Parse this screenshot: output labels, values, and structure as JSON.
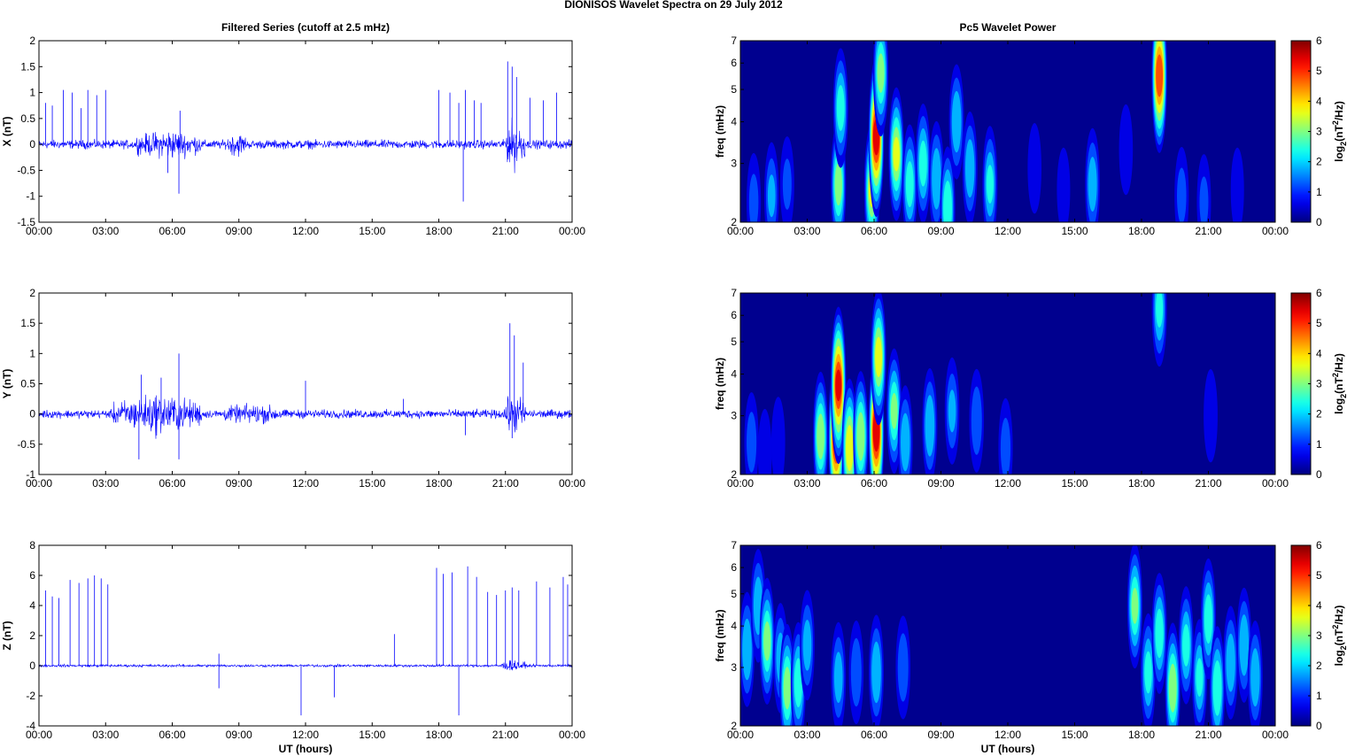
{
  "figure": {
    "title": "DIONISOS Wavelet Spectra on 29 July      2012",
    "left_column_title": "Filtered Series (cutoff at 2.5 mHz)",
    "right_column_title": "Pc5 Wavelet Power",
    "xlabel": "UT (hours)"
  },
  "colors": {
    "trace": "#0000ff",
    "axes": "#000000",
    "spectrum_background": "#00008f",
    "colormap": "jet"
  },
  "chart_data": [
    {
      "type": "line",
      "panel": "filtered-x",
      "ylabel": "X (nT)",
      "ylim": [
        -1.5,
        2
      ],
      "yticks": [
        "-1.5",
        "-1",
        "-0.5",
        "0",
        "0.5",
        "1",
        "1.5",
        "2"
      ],
      "xlim": [
        0,
        24
      ],
      "xticks": [
        "00:00",
        "03:00",
        "06:00",
        "09:00",
        "12:00",
        "15:00",
        "18:00",
        "21:00",
        "00:00"
      ],
      "baseline_noise_amplitude": 0.12,
      "bursts": [
        {
          "t_start": 4.4,
          "t_end": 7.3,
          "amplitude": 0.3
        },
        {
          "t_start": 8.5,
          "t_end": 9.3,
          "amplitude": 0.25
        },
        {
          "t_start": 20.9,
          "t_end": 21.9,
          "amplitude": 0.6
        }
      ],
      "spikes": [
        {
          "t": 0.3,
          "v": 0.8
        },
        {
          "t": 0.6,
          "v": 0.75
        },
        {
          "t": 1.1,
          "v": 1.05
        },
        {
          "t": 1.5,
          "v": 1.0
        },
        {
          "t": 1.9,
          "v": 0.7
        },
        {
          "t": 2.2,
          "v": 1.05
        },
        {
          "t": 2.6,
          "v": 0.95
        },
        {
          "t": 3.0,
          "v": 1.05
        },
        {
          "t": 6.3,
          "v": -0.95
        },
        {
          "t": 6.35,
          "v": 0.65
        },
        {
          "t": 5.8,
          "v": -0.55
        },
        {
          "t": 18.0,
          "v": 1.05
        },
        {
          "t": 18.5,
          "v": 1.0
        },
        {
          "t": 18.9,
          "v": 0.8
        },
        {
          "t": 19.2,
          "v": 1.05
        },
        {
          "t": 19.6,
          "v": 0.85
        },
        {
          "t": 19.9,
          "v": 0.8
        },
        {
          "t": 19.1,
          "v": -1.1
        },
        {
          "t": 21.1,
          "v": 1.6
        },
        {
          "t": 21.3,
          "v": 1.5
        },
        {
          "t": 21.5,
          "v": 1.3
        },
        {
          "t": 22.7,
          "v": 0.85
        },
        {
          "t": 23.3,
          "v": 1.0
        },
        {
          "t": 22.1,
          "v": 0.9
        }
      ]
    },
    {
      "type": "heatmap",
      "panel": "wavelet-x",
      "ylabel": "freq (mHz)",
      "ylim": [
        2,
        7
      ],
      "yscale": "log",
      "yticks": [
        "2",
        "3",
        "4",
        "5",
        "6",
        "7"
      ],
      "xlim": [
        0,
        24
      ],
      "xticks": [
        "00:00",
        "03:00",
        "06:00",
        "09:00",
        "12:00",
        "15:00",
        "18:00",
        "21:00",
        "00:00"
      ],
      "colorbar": {
        "label": "log2(nT2/Hz)",
        "range": [
          0,
          6
        ],
        "ticks": [
          "0",
          "1",
          "2",
          "3",
          "4",
          "5",
          "6"
        ]
      },
      "blobs": [
        {
          "t": 0.6,
          "f": 2.3,
          "p": 1.3
        },
        {
          "t": 1.4,
          "f": 2.4,
          "p": 1.8
        },
        {
          "t": 2.1,
          "f": 2.6,
          "p": 1.2
        },
        {
          "t": 4.4,
          "f": 2.6,
          "p": 3.2
        },
        {
          "t": 4.5,
          "f": 4.4,
          "p": 2.6
        },
        {
          "t": 5.9,
          "f": 2.5,
          "p": 3.6
        },
        {
          "t": 6.1,
          "f": 3.6,
          "p": 5.6
        },
        {
          "t": 6.3,
          "f": 5.6,
          "p": 3.1
        },
        {
          "t": 7.0,
          "f": 3.2,
          "p": 3.6
        },
        {
          "t": 7.6,
          "f": 2.6,
          "p": 2.6
        },
        {
          "t": 8.2,
          "f": 3.0,
          "p": 2.6
        },
        {
          "t": 8.8,
          "f": 2.7,
          "p": 2.3
        },
        {
          "t": 9.3,
          "f": 2.2,
          "p": 2.9
        },
        {
          "t": 9.7,
          "f": 4.0,
          "p": 2.3
        },
        {
          "t": 10.3,
          "f": 2.9,
          "p": 2.2
        },
        {
          "t": 11.2,
          "f": 2.6,
          "p": 2.4
        },
        {
          "t": 13.2,
          "f": 2.9,
          "p": 1.0
        },
        {
          "t": 14.5,
          "f": 2.5,
          "p": 0.8
        },
        {
          "t": 15.8,
          "f": 2.6,
          "p": 2.1
        },
        {
          "t": 17.3,
          "f": 3.3,
          "p": 1.0
        },
        {
          "t": 18.8,
          "f": 5.5,
          "p": 5.2
        },
        {
          "t": 19.8,
          "f": 2.4,
          "p": 1.3
        },
        {
          "t": 20.8,
          "f": 2.3,
          "p": 1.2
        },
        {
          "t": 22.3,
          "f": 2.5,
          "p": 0.8
        }
      ]
    },
    {
      "type": "line",
      "panel": "filtered-y",
      "ylabel": "Y (nT)",
      "ylim": [
        -1,
        2
      ],
      "yticks": [
        "-1",
        "-0.5",
        "0",
        "0.5",
        "1",
        "1.5",
        "2"
      ],
      "xlim": [
        0,
        24
      ],
      "xticks": [
        "00:00",
        "03:00",
        "06:00",
        "09:00",
        "12:00",
        "15:00",
        "18:00",
        "21:00",
        "00:00"
      ],
      "baseline_noise_amplitude": 0.1,
      "bursts": [
        {
          "t_start": 3.3,
          "t_end": 7.4,
          "amplitude": 0.4
        },
        {
          "t_start": 8.3,
          "t_end": 11.0,
          "amplitude": 0.15
        },
        {
          "t_start": 20.9,
          "t_end": 21.9,
          "amplitude": 0.4
        }
      ],
      "spikes": [
        {
          "t": 4.5,
          "v": -0.75
        },
        {
          "t": 4.6,
          "v": 0.65
        },
        {
          "t": 6.3,
          "v": 1.0
        },
        {
          "t": 6.3,
          "v": -0.75
        },
        {
          "t": 5.5,
          "v": 0.6
        },
        {
          "t": 12.0,
          "v": 0.55
        },
        {
          "t": 16.4,
          "v": 0.25
        },
        {
          "t": 19.2,
          "v": -0.35
        },
        {
          "t": 21.2,
          "v": 1.5
        },
        {
          "t": 21.4,
          "v": 1.3
        },
        {
          "t": 21.8,
          "v": 0.85
        },
        {
          "t": 21.3,
          "v": -0.4
        }
      ]
    },
    {
      "type": "heatmap",
      "panel": "wavelet-y",
      "ylabel": "freq (mHz)",
      "ylim": [
        2,
        7
      ],
      "yscale": "log",
      "yticks": [
        "2",
        "3",
        "4",
        "5",
        "6",
        "7"
      ],
      "xlim": [
        0,
        24
      ],
      "xticks": [
        "00:00",
        "03:00",
        "06:00",
        "09:00",
        "12:00",
        "15:00",
        "18:00",
        "21:00",
        "00:00"
      ],
      "colorbar": {
        "label": "log2(nT2/Hz)",
        "range": [
          0,
          6
        ],
        "ticks": [
          "0",
          "1",
          "2",
          "3",
          "4",
          "5",
          "6"
        ]
      },
      "blobs": [
        {
          "t": 0.5,
          "f": 2.5,
          "p": 1.4
        },
        {
          "t": 1.1,
          "f": 2.3,
          "p": 1.0
        },
        {
          "t": 1.7,
          "f": 2.5,
          "p": 1.0
        },
        {
          "t": 3.6,
          "f": 2.6,
          "p": 3.3
        },
        {
          "t": 4.3,
          "f": 2.6,
          "p": 5.7
        },
        {
          "t": 4.4,
          "f": 3.7,
          "p": 5.4
        },
        {
          "t": 4.9,
          "f": 2.4,
          "p": 4.0
        },
        {
          "t": 5.4,
          "f": 2.6,
          "p": 3.4
        },
        {
          "t": 6.1,
          "f": 2.7,
          "p": 5.8
        },
        {
          "t": 6.2,
          "f": 4.5,
          "p": 3.8
        },
        {
          "t": 6.9,
          "f": 3.1,
          "p": 3.0
        },
        {
          "t": 7.4,
          "f": 2.5,
          "p": 2.2
        },
        {
          "t": 8.5,
          "f": 2.8,
          "p": 2.3
        },
        {
          "t": 9.5,
          "f": 3.1,
          "p": 1.8
        },
        {
          "t": 10.6,
          "f": 2.9,
          "p": 1.6
        },
        {
          "t": 11.9,
          "f": 2.4,
          "p": 1.4
        },
        {
          "t": 18.8,
          "f": 6.3,
          "p": 2.4
        },
        {
          "t": 21.1,
          "f": 3.0,
          "p": 1.1
        }
      ]
    },
    {
      "type": "line",
      "panel": "filtered-z",
      "ylabel": "Z (nT)",
      "xlabel": "UT (hours)",
      "ylim": [
        -4,
        8
      ],
      "yticks": [
        "-4",
        "-2",
        "0",
        "2",
        "4",
        "6",
        "8"
      ],
      "xlim": [
        0,
        24
      ],
      "xticks": [
        "00:00",
        "03:00",
        "06:00",
        "09:00",
        "12:00",
        "15:00",
        "18:00",
        "21:00",
        "00:00"
      ],
      "baseline_noise_amplitude": 0.12,
      "bursts": [
        {
          "t_start": 20.8,
          "t_end": 21.9,
          "amplitude": 0.45
        }
      ],
      "spikes": [
        {
          "t": 0.3,
          "v": 5.0
        },
        {
          "t": 0.6,
          "v": 4.6
        },
        {
          "t": 0.9,
          "v": 4.5
        },
        {
          "t": 1.4,
          "v": 5.7
        },
        {
          "t": 1.8,
          "v": 5.5
        },
        {
          "t": 2.2,
          "v": 5.8
        },
        {
          "t": 2.5,
          "v": 6.0
        },
        {
          "t": 2.8,
          "v": 5.8
        },
        {
          "t": 3.1,
          "v": 5.4
        },
        {
          "t": 8.1,
          "v": -1.5
        },
        {
          "t": 8.1,
          "v": 0.8
        },
        {
          "t": 11.8,
          "v": -3.3
        },
        {
          "t": 13.3,
          "v": -2.1
        },
        {
          "t": 16.0,
          "v": 2.1
        },
        {
          "t": 17.9,
          "v": 6.5
        },
        {
          "t": 18.2,
          "v": 6.1
        },
        {
          "t": 18.6,
          "v": 6.2
        },
        {
          "t": 18.9,
          "v": -3.3
        },
        {
          "t": 19.3,
          "v": 6.6
        },
        {
          "t": 19.7,
          "v": 5.9
        },
        {
          "t": 20.2,
          "v": 4.9
        },
        {
          "t": 20.6,
          "v": 4.7
        },
        {
          "t": 21.0,
          "v": 5.0
        },
        {
          "t": 21.3,
          "v": 5.2
        },
        {
          "t": 21.6,
          "v": 5.0
        },
        {
          "t": 22.4,
          "v": 5.6
        },
        {
          "t": 23.0,
          "v": 5.2
        },
        {
          "t": 23.6,
          "v": 5.9
        },
        {
          "t": 23.8,
          "v": 5.4
        }
      ]
    },
    {
      "type": "heatmap",
      "panel": "wavelet-z",
      "ylabel": "freq (mHz)",
      "xlabel": "UT (hours)",
      "ylim": [
        2,
        7
      ],
      "yscale": "log",
      "yticks": [
        "2",
        "3",
        "4",
        "5",
        "6",
        "7"
      ],
      "xlim": [
        0,
        24
      ],
      "xticks": [
        "00:00",
        "03:00",
        "06:00",
        "09:00",
        "12:00",
        "15:00",
        "18:00",
        "21:00",
        "00:00"
      ],
      "colorbar": {
        "label": "log2(nT2/Hz)",
        "range": [
          0,
          6
        ],
        "ticks": [
          "0",
          "1",
          "2",
          "3",
          "4",
          "5",
          "6"
        ]
      },
      "blobs": [
        {
          "t": 0.3,
          "f": 3.4,
          "p": 2.3
        },
        {
          "t": 0.8,
          "f": 4.6,
          "p": 2.2
        },
        {
          "t": 1.2,
          "f": 3.6,
          "p": 3.1
        },
        {
          "t": 1.8,
          "f": 3.2,
          "p": 2.0
        },
        {
          "t": 2.1,
          "f": 2.6,
          "p": 3.2
        },
        {
          "t": 2.6,
          "f": 2.7,
          "p": 2.7
        },
        {
          "t": 3.0,
          "f": 3.5,
          "p": 2.0
        },
        {
          "t": 4.4,
          "f": 2.8,
          "p": 2.0
        },
        {
          "t": 5.2,
          "f": 2.9,
          "p": 1.6
        },
        {
          "t": 6.1,
          "f": 2.9,
          "p": 2.3
        },
        {
          "t": 7.3,
          "f": 3.0,
          "p": 1.6
        },
        {
          "t": 17.7,
          "f": 4.6,
          "p": 3.0
        },
        {
          "t": 18.3,
          "f": 2.9,
          "p": 2.5
        },
        {
          "t": 18.8,
          "f": 3.8,
          "p": 2.7
        },
        {
          "t": 19.4,
          "f": 2.6,
          "p": 3.4
        },
        {
          "t": 20.0,
          "f": 3.5,
          "p": 2.5
        },
        {
          "t": 20.6,
          "f": 2.8,
          "p": 2.4
        },
        {
          "t": 21.0,
          "f": 4.2,
          "p": 2.7
        },
        {
          "t": 21.4,
          "f": 2.6,
          "p": 2.9
        },
        {
          "t": 22.0,
          "f": 3.1,
          "p": 2.2
        },
        {
          "t": 22.6,
          "f": 3.5,
          "p": 2.3
        },
        {
          "t": 23.1,
          "f": 2.8,
          "p": 2.2
        }
      ]
    }
  ]
}
